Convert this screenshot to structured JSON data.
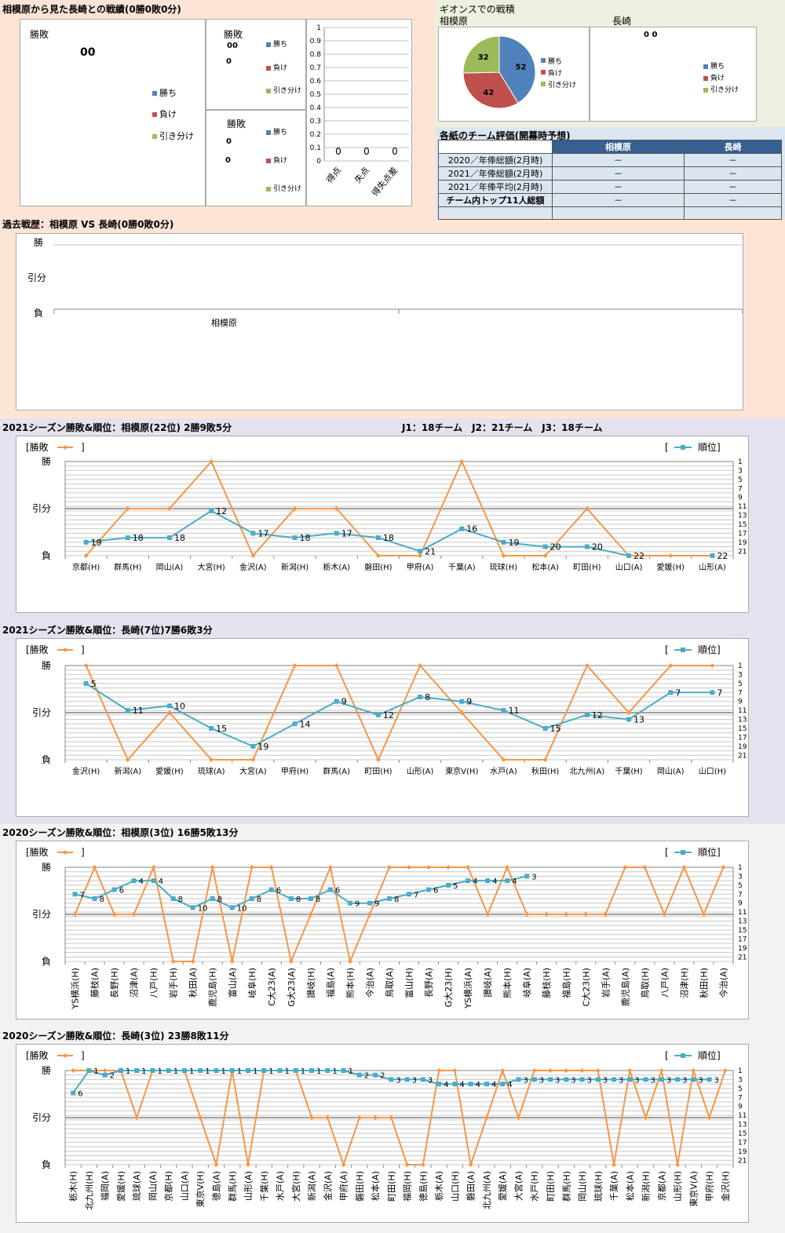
{
  "colors": {
    "win": "#4f81bd",
    "loss": "#c0504d",
    "draw": "#9bbb59",
    "result_line": "#f79646",
    "rank_line": "#4bacc6"
  },
  "h2h": {
    "title": "相模原から見た長崎との戦績(0勝0敗0分)",
    "left_label": "勝敗",
    "left_values": "00",
    "legend": [
      "勝ち",
      "負け",
      "引き分け"
    ],
    "home_label": "勝敗",
    "home_values": [
      "00",
      "0"
    ],
    "away_label": "勝敗",
    "away_values": [
      "0",
      "0"
    ],
    "bar_chart": {
      "type": "bar",
      "categories": [
        "得点",
        "失点",
        "得失点差"
      ],
      "values": [
        0,
        0,
        0
      ],
      "data_labels": [
        "0",
        "0",
        "0"
      ],
      "yticks": [
        "0",
        "0.1",
        "0.2",
        "0.3",
        "0.4",
        "0.5",
        "0.6",
        "0.7",
        "0.8",
        "0.9",
        "1"
      ],
      "ylim": [
        0,
        1
      ]
    }
  },
  "gions": {
    "title": "ギオンスでの戦積",
    "left_team": "相模原",
    "right_team": "長崎",
    "pie": {
      "type": "pie",
      "labels": [
        "勝ち",
        "負け",
        "引き分け"
      ],
      "values": [
        52,
        42,
        32
      ]
    },
    "right_values": "0 0",
    "legend": [
      "勝ち",
      "負け",
      "引き分け"
    ]
  },
  "evaluation": {
    "title": "各紙のチーム評価(開幕時予想)",
    "headers": [
      "",
      "相模原",
      "長崎"
    ],
    "rows": [
      [
        "2020／年俸総額(2月時)",
        "－",
        "－"
      ],
      [
        "2021／年俸総額(2月時)",
        "－",
        "－"
      ],
      [
        "2021／年俸平均(2月時)",
        "－",
        "－"
      ],
      [
        "チーム内トップ11人総額",
        "－",
        "－"
      ],
      [
        "",
        "",
        ""
      ]
    ]
  },
  "history": {
    "title": "過去戦歴：相模原 VS 長崎(0勝0敗0分)",
    "ylabels": [
      "勝",
      "引分",
      "負"
    ],
    "xlabel": "相模原"
  },
  "teams_info": "J1：18チーム　J2：21チーム　J3：18チーム",
  "legend_common": {
    "result": "[勝敗",
    "result_close": "]",
    "rank_open": "[",
    "rank": "順位]"
  },
  "chart_data": [
    {
      "type": "line",
      "title": "2021シーズン勝敗&順位：相模原(22位) 2勝9敗5分",
      "categories": [
        "京都(H)",
        "群馬(H)",
        "岡山(A)",
        "大宮(H)",
        "金沢(A)",
        "新潟(H)",
        "栃木(A)",
        "磐田(H)",
        "甲府(A)",
        "千葉(A)",
        "琉球(H)",
        "松本(A)",
        "町田(H)",
        "山口(A)",
        "愛媛(H)",
        "山形(A)"
      ],
      "results": [
        "L",
        "D",
        "D",
        "W",
        "L",
        "D",
        "D",
        "L",
        "L",
        "W",
        "L",
        "L",
        "D",
        "L",
        "L",
        "L"
      ],
      "ranks": [
        19,
        18,
        18,
        12,
        17,
        18,
        17,
        18,
        21,
        16,
        19,
        20,
        20,
        22,
        null,
        22
      ],
      "result_axis": [
        "勝",
        "引分",
        "負"
      ],
      "rank_ticks": [
        1,
        3,
        5,
        7,
        9,
        11,
        13,
        15,
        17,
        19,
        21
      ],
      "rank_max": 22
    },
    {
      "type": "line",
      "title": "2021シーズン勝敗&順位：長崎(7位)7勝6敗3分",
      "categories": [
        "金沢(H)",
        "新潟(A)",
        "愛媛(H)",
        "琉球(A)",
        "大宮(A)",
        "甲府(H)",
        "群馬(A)",
        "町田(H)",
        "山形(A)",
        "東京V(H)",
        "水戸(A)",
        "秋田(H)",
        "北九州(A)",
        "千葉(H)",
        "岡山(A)",
        "山口(H)"
      ],
      "results": [
        "W",
        "L",
        "D",
        "L",
        "L",
        "W",
        "W",
        "L",
        "W",
        "D",
        "L",
        "L",
        "W",
        "D",
        "W",
        "W"
      ],
      "ranks": [
        5,
        11,
        10,
        15,
        19,
        14,
        9,
        12,
        8,
        9,
        11,
        15,
        12,
        13,
        7,
        7
      ],
      "result_axis": [
        "勝",
        "引分",
        "負"
      ],
      "rank_ticks": [
        1,
        3,
        5,
        7,
        9,
        11,
        13,
        15,
        17,
        19,
        21
      ],
      "rank_max": 22
    },
    {
      "type": "line",
      "title": "2020シーズン勝敗&順位：相模原(3位) 16勝5敗13分",
      "categories": [
        "YS横浜(H)",
        "藤枝(A)",
        "長野(H)",
        "沼津(A)",
        "八戸(H)",
        "岩手(H)",
        "秋田(A)",
        "鹿児島(H)",
        "富山(A)",
        "岐阜(H)",
        "C大23(A)",
        "G大23(A)",
        "讃岐(H)",
        "福島(A)",
        "熊本(H)",
        "今治(A)",
        "鳥取(A)",
        "富山(H)",
        "長野(A)",
        "G大23(H)",
        "YS横浜(A)",
        "讃岐(A)",
        "熊本(H)",
        "岐阜(A)",
        "藤枝(H)",
        "福島(H)",
        "C大23(H)",
        "岩手(A)",
        "鹿児島(A)",
        "鳥取(H)",
        "八戸(A)",
        "沼津(H)",
        "秋田(H)",
        "今治(A)"
      ],
      "results": [
        "D",
        "W",
        "D",
        "D",
        "W",
        "L",
        "L",
        "W",
        "L",
        "W",
        "W",
        "L",
        "D",
        "W",
        "L",
        "D",
        "W",
        "W",
        "W",
        "W",
        "W",
        "D",
        "W",
        "D",
        "D",
        "D",
        "D",
        "D",
        "W",
        "W",
        "D",
        "W",
        "D",
        "W"
      ],
      "ranks": [
        7,
        8,
        6,
        4,
        4,
        8,
        10,
        8,
        10,
        8,
        6,
        8,
        8,
        6,
        9,
        9,
        8,
        7,
        6,
        5,
        4,
        4,
        4,
        3,
        null,
        null,
        null,
        null,
        null,
        null,
        null,
        null,
        null,
        null
      ],
      "result_axis": [
        "勝",
        "引分",
        "負"
      ],
      "rank_ticks": [
        1,
        3,
        5,
        7,
        9,
        11,
        13,
        15,
        17,
        19,
        21
      ],
      "rank_max": 22
    },
    {
      "type": "line",
      "title": "2020シーズン勝敗&順位：長崎(3位) 23勝8敗11分",
      "categories": [
        "栃木(H)",
        "北九州(H)",
        "福岡(A)",
        "愛媛(H)",
        "琉球(A)",
        "岡山(A)",
        "京都(H)",
        "山口(A)",
        "東京V(H)",
        "徳島(A)",
        "群馬(H)",
        "山形(A)",
        "千葉(H)",
        "水戸(A)",
        "大宮(H)",
        "新潟(A)",
        "金沢(A)",
        "甲府(A)",
        "磐田(H)",
        "松本(A)",
        "町田(H)",
        "福岡(H)",
        "徳島(H)",
        "栃木(A)",
        "山口(H)",
        "磐田(A)",
        "北九州(A)",
        "愛媛(A)",
        "大宮(A)",
        "水戸(H)",
        "町田(H)",
        "群馬(H)",
        "岡山(H)",
        "琉球(H)",
        "千葉(A)",
        "松本(A)",
        "新潟(H)",
        "京都(A)",
        "山形(H)",
        "東京V(A)",
        "甲府(H)",
        "金沢(H)"
      ],
      "results": [
        "W",
        "W",
        "W",
        "W",
        "D",
        "W",
        "W",
        "W",
        "D",
        "L",
        "W",
        "L",
        "W",
        "W",
        "W",
        "D",
        "D",
        "L",
        "D",
        "D",
        "D",
        "L",
        "L",
        "W",
        "W",
        "L",
        "D",
        "W",
        "D",
        "W",
        "W",
        "W",
        "W",
        "W",
        "L",
        "W",
        "D",
        "W",
        "L",
        "W",
        "D",
        "W"
      ],
      "ranks": [
        6,
        1,
        2,
        1,
        1,
        1,
        1,
        1,
        1,
        1,
        1,
        1,
        1,
        1,
        1,
        1,
        1,
        1,
        2,
        2,
        3,
        3,
        3,
        4,
        4,
        4,
        4,
        4,
        3,
        3,
        3,
        3,
        3,
        3,
        3,
        3,
        3,
        3,
        3,
        3,
        3,
        null
      ],
      "result_axis": [
        "勝",
        "引分",
        "負"
      ],
      "rank_ticks": [
        1,
        3,
        5,
        7,
        9,
        11,
        13,
        15,
        17,
        19,
        21
      ],
      "rank_max": 22
    }
  ]
}
